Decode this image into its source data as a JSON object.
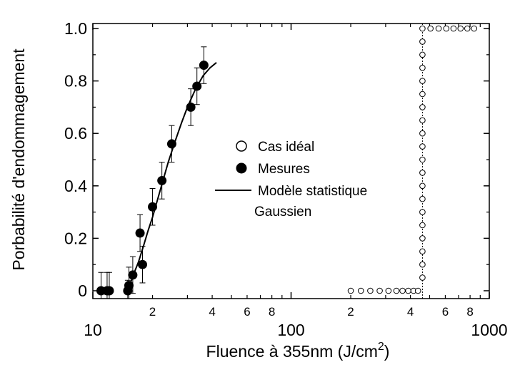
{
  "chart_data": {
    "type": "scatter",
    "xlabel": "Fluence à 355nm (J/cm²)",
    "ylabel": "Porbabilité d'endommagement",
    "xscale": "log",
    "xlim": [
      10,
      1000
    ],
    "ylim": [
      0,
      1.0
    ],
    "x_major_ticks": [
      {
        "value": 10,
        "label": "10"
      },
      {
        "value": 100,
        "label": "100"
      },
      {
        "value": 1000,
        "label": "1000"
      }
    ],
    "x_minor_ticks": [
      {
        "value": 20,
        "label": "2"
      },
      {
        "value": 40,
        "label": "4"
      },
      {
        "value": 60,
        "label": "6"
      },
      {
        "value": 80,
        "label": "8"
      },
      {
        "value": 200,
        "label": "2"
      },
      {
        "value": 400,
        "label": "4"
      },
      {
        "value": 600,
        "label": "6"
      },
      {
        "value": 800,
        "label": "8"
      }
    ],
    "y_ticks": [
      {
        "value": 0,
        "label": "0"
      },
      {
        "value": 0.2,
        "label": "0.2"
      },
      {
        "value": 0.4,
        "label": "0.4"
      },
      {
        "value": 0.6,
        "label": "0.6"
      },
      {
        "value": 0.8,
        "label": "0.8"
      },
      {
        "value": 1.0,
        "label": "1.0"
      }
    ],
    "legend": {
      "placement": "center-right",
      "entries": [
        {
          "marker": "open-circle",
          "label": "Cas idéal"
        },
        {
          "marker": "filled-circle",
          "label": "Mesures"
        },
        {
          "marker": "line",
          "label": "Modèle statistique",
          "label2": "Gaussien"
        }
      ]
    },
    "series": [
      {
        "name": "Mesures",
        "marker": "filled-circle",
        "points": [
          {
            "x": 11.0,
            "y": 0.0,
            "err": 0.07
          },
          {
            "x": 11.8,
            "y": 0.0,
            "err": 0.07
          },
          {
            "x": 12.1,
            "y": 0.0,
            "err": 0.07
          },
          {
            "x": 15.0,
            "y": 0.0,
            "err": 0.04
          },
          {
            "x": 15.2,
            "y": 0.02,
            "err": 0.07
          },
          {
            "x": 15.9,
            "y": 0.06,
            "err": 0.07
          },
          {
            "x": 17.3,
            "y": 0.22,
            "err": 0.07
          },
          {
            "x": 17.8,
            "y": 0.1,
            "err": 0.07
          },
          {
            "x": 20.0,
            "y": 0.32,
            "err": 0.07
          },
          {
            "x": 22.3,
            "y": 0.42,
            "err": 0.07
          },
          {
            "x": 25.0,
            "y": 0.56,
            "err": 0.07
          },
          {
            "x": 31.2,
            "y": 0.7,
            "err": 0.07
          },
          {
            "x": 33.5,
            "y": 0.78,
            "err": 0.07
          },
          {
            "x": 36.3,
            "y": 0.86,
            "err": 0.07
          }
        ]
      },
      {
        "name": "Cas idéal",
        "marker": "open-circle",
        "points": [
          {
            "x": 200,
            "y": 0
          },
          {
            "x": 225,
            "y": 0
          },
          {
            "x": 251,
            "y": 0
          },
          {
            "x": 280,
            "y": 0
          },
          {
            "x": 310,
            "y": 0
          },
          {
            "x": 340,
            "y": 0
          },
          {
            "x": 365,
            "y": 0
          },
          {
            "x": 390,
            "y": 0
          },
          {
            "x": 415,
            "y": 0
          },
          {
            "x": 437,
            "y": 0
          },
          {
            "x": 460,
            "y": 0.05
          },
          {
            "x": 460,
            "y": 0.1
          },
          {
            "x": 460,
            "y": 0.15
          },
          {
            "x": 460,
            "y": 0.2
          },
          {
            "x": 460,
            "y": 0.25
          },
          {
            "x": 460,
            "y": 0.3
          },
          {
            "x": 460,
            "y": 0.35
          },
          {
            "x": 460,
            "y": 0.4
          },
          {
            "x": 460,
            "y": 0.45
          },
          {
            "x": 460,
            "y": 0.5
          },
          {
            "x": 460,
            "y": 0.55
          },
          {
            "x": 460,
            "y": 0.6
          },
          {
            "x": 460,
            "y": 0.65
          },
          {
            "x": 460,
            "y": 0.7
          },
          {
            "x": 460,
            "y": 0.75
          },
          {
            "x": 460,
            "y": 0.8
          },
          {
            "x": 460,
            "y": 0.85
          },
          {
            "x": 460,
            "y": 0.9
          },
          {
            "x": 460,
            "y": 0.95
          },
          {
            "x": 460,
            "y": 1.0
          },
          {
            "x": 505,
            "y": 1.0
          },
          {
            "x": 555,
            "y": 1.0
          },
          {
            "x": 607,
            "y": 1.0
          },
          {
            "x": 660,
            "y": 1.0
          },
          {
            "x": 716,
            "y": 1.0
          },
          {
            "x": 775,
            "y": 1.0
          },
          {
            "x": 838,
            "y": 1.0
          }
        ]
      },
      {
        "name": "Modèle statistique Gaussien",
        "marker": "line",
        "points": [
          {
            "x": 15.0,
            "y": 0.0
          },
          {
            "x": 16.0,
            "y": 0.06
          },
          {
            "x": 17.0,
            "y": 0.11
          },
          {
            "x": 18.0,
            "y": 0.17
          },
          {
            "x": 19.0,
            "y": 0.23
          },
          {
            "x": 20.0,
            "y": 0.28
          },
          {
            "x": 22.0,
            "y": 0.39
          },
          {
            "x": 24.0,
            "y": 0.49
          },
          {
            "x": 26.0,
            "y": 0.57
          },
          {
            "x": 28.0,
            "y": 0.64
          },
          {
            "x": 30.0,
            "y": 0.7
          },
          {
            "x": 33.0,
            "y": 0.77
          },
          {
            "x": 36.0,
            "y": 0.82
          },
          {
            "x": 39.0,
            "y": 0.85
          },
          {
            "x": 42.0,
            "y": 0.87
          }
        ]
      }
    ]
  }
}
